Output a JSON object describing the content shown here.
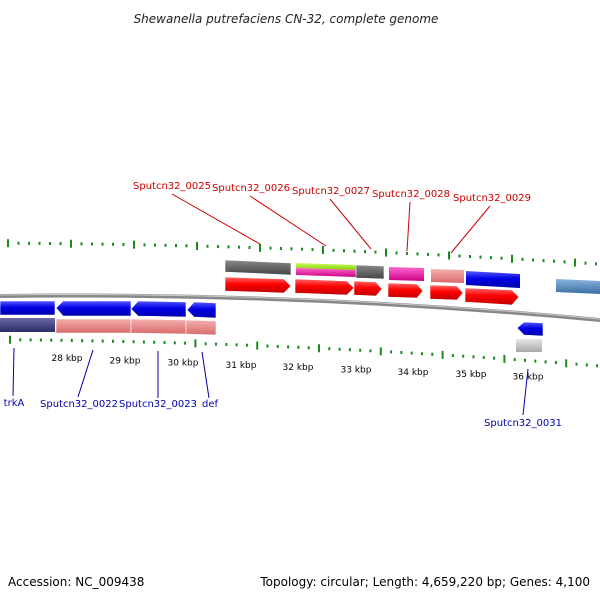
{
  "title": "Shewanella putrefaciens CN-32, complete genome",
  "footer": {
    "accession": "Accession: NC_009438",
    "summary": "Topology: circular; Length: 4,659,220 bp; Genes: 4,100"
  },
  "ticks": [
    "28 kbp",
    "29 kbp",
    "30 kbp",
    "31 kbp",
    "32 kbp",
    "33 kbp",
    "34 kbp",
    "35 kbp",
    "36 kbp"
  ],
  "colors": {
    "forward_label": "#cc0000",
    "reverse_label": "#0000aa",
    "tick_mark": "#1a8a1a",
    "backbone": "#888888"
  },
  "genes_top": [
    "Sputcn32_0025",
    "Sputcn32_0026",
    "Sputcn32_0027",
    "Sputcn32_0028",
    "Sputcn32_0029"
  ],
  "genes_bottom": [
    "trkA",
    "Sputcn32_0022",
    "Sputcn32_0023",
    "def",
    "Sputcn32_0031"
  ]
}
